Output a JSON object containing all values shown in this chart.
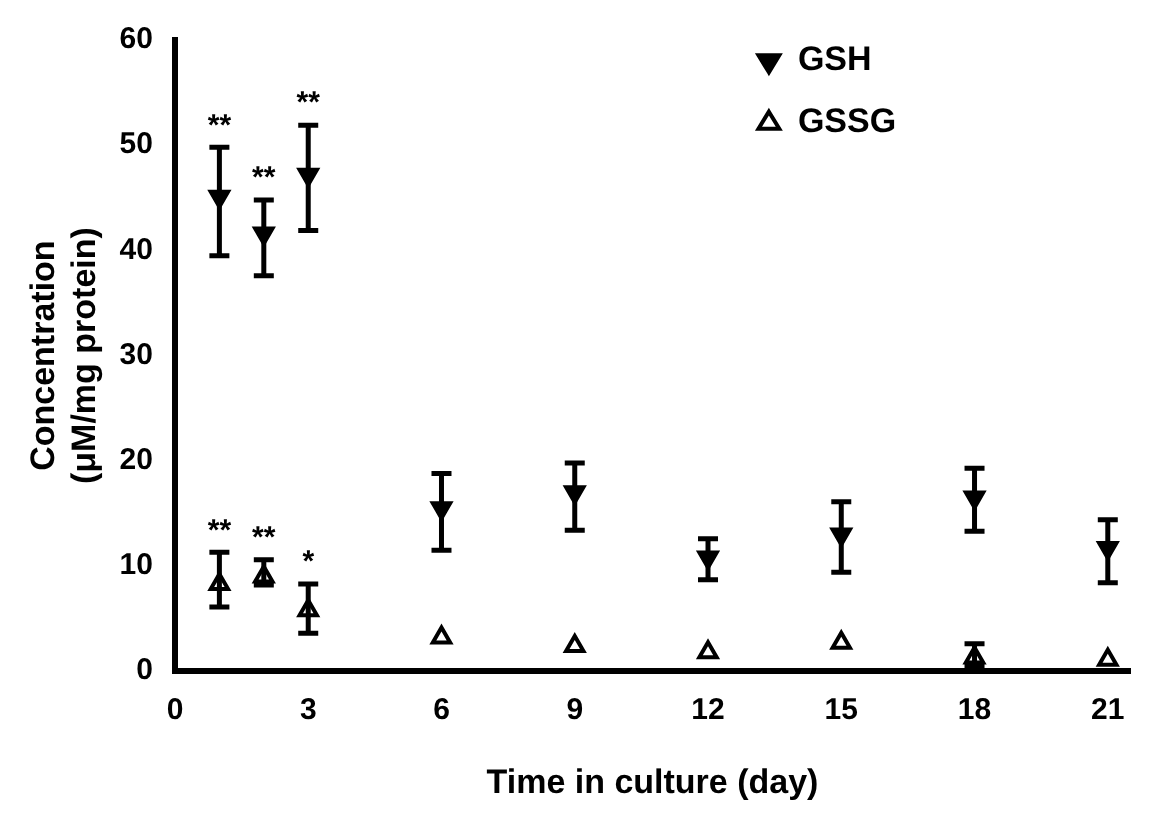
{
  "chart_data": {
    "type": "scatter",
    "xlabel": "Time in culture (day)",
    "ylabel": "Concentration\n(μM/mg protein)",
    "x": [
      1,
      2,
      3,
      6,
      9,
      12,
      15,
      18,
      21
    ],
    "series": [
      {
        "name": "GSH",
        "color": "#000000",
        "values": [
          45.1,
          41.6,
          47.2,
          15.5,
          17,
          10.8,
          13,
          16.5,
          11.7
        ],
        "errors": [
          [
            39.5,
            49.8
          ],
          [
            37.6,
            44.8
          ],
          [
            41.9,
            51.9
          ],
          [
            11.5,
            18.8
          ],
          [
            13.4,
            19.8
          ],
          [
            8.7,
            12.6
          ],
          [
            9.4,
            16.1
          ],
          [
            13.3,
            19.3
          ],
          [
            8.4,
            14.4
          ]
        ]
      },
      {
        "name": "GSSG",
        "color": "#000000",
        "values": [
          8.3,
          9,
          5.8,
          3.2,
          2.4,
          1.8,
          2.7,
          1.3,
          1.1
        ],
        "errors": [
          [
            6.1,
            11.3
          ],
          [
            8.2,
            10.6
          ],
          [
            3.6,
            8.3
          ],
          null,
          null,
          null,
          null,
          [
            0.5,
            2.6
          ],
          null
        ]
      }
    ],
    "xlim": [
      0,
      21.5
    ],
    "xticks": [
      0,
      3,
      6,
      9,
      12,
      15,
      18,
      21
    ],
    "ylim": [
      0,
      60
    ],
    "yticks": [
      0,
      10,
      20,
      30,
      40,
      50,
      60
    ],
    "marker": "triangle",
    "legend": "top right",
    "grid": false,
    "annotations": [
      {
        "text": "**",
        "x": 1,
        "y": 49.8
      },
      {
        "text": "**",
        "x": 2,
        "y": 44.8
      },
      {
        "text": "**",
        "x": 3,
        "y": 51.9
      },
      {
        "text": "**",
        "x": 1,
        "y": 11.3
      },
      {
        "text": "**",
        "x": 2,
        "y": 10.6
      },
      {
        "text": "*",
        "x": 3,
        "y": 8.3
      }
    ]
  }
}
